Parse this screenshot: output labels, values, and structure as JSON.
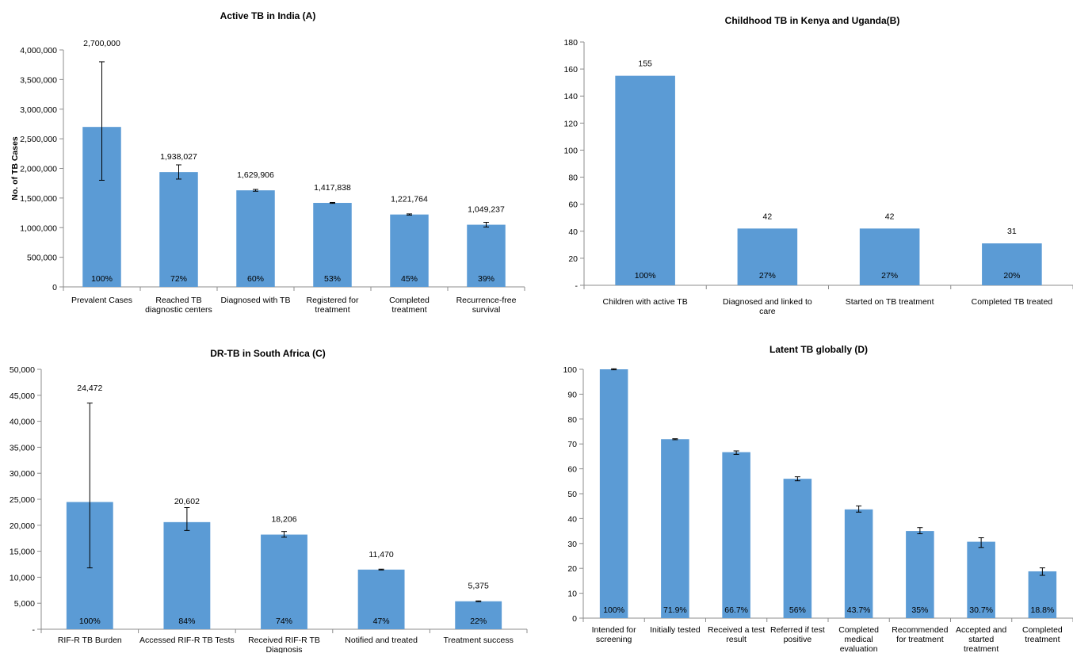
{
  "chart_data": [
    {
      "type": "bar",
      "title": "Active TB in India (A)",
      "ylabel": "No. of TB Cases",
      "xlabel": "",
      "ylim": [
        0,
        4000000
      ],
      "yticks": [
        "0",
        "500,000",
        "1,000,000",
        "1,500,000",
        "2,000,000",
        "2,500,000",
        "3,000,000",
        "3,500,000",
        "4,000,000"
      ],
      "categories": [
        [
          "Prevalent Cases"
        ],
        [
          "Reached TB",
          "diagnostic centers"
        ],
        [
          "Diagnosed with TB"
        ],
        [
          "Registered for",
          "treatment"
        ],
        [
          "Completed",
          "treatment"
        ],
        [
          "Recurrence-free",
          "survival"
        ]
      ],
      "values": [
        2700000,
        1938027,
        1629906,
        1417838,
        1221764,
        1049237
      ],
      "value_labels": [
        "2,700,000",
        "1,938,027",
        "1,629,906",
        "1,417,838",
        "1,221,764",
        "1,049,237"
      ],
      "percent_labels": [
        "100%",
        "72%",
        "60%",
        "53%",
        "45%",
        "39%"
      ],
      "error_low": [
        1800000,
        1820000,
        1615000,
        1410000,
        1212000,
        1010000
      ],
      "error_high": [
        3800000,
        2060000,
        1645000,
        1425000,
        1232000,
        1090000
      ]
    },
    {
      "type": "bar",
      "title": "Childhood TB in Kenya and Uganda(B)",
      "ylabel": "",
      "xlabel": "",
      "ylim": [
        0,
        180
      ],
      "yticks": [
        "-",
        "20",
        "40",
        "60",
        "80",
        "100",
        "120",
        "140",
        "160",
        "180"
      ],
      "categories": [
        [
          "Children with active TB"
        ],
        [
          "Diagnosed and linked to",
          "care"
        ],
        [
          "Started on TB treatment"
        ],
        [
          "Completed TB treated"
        ]
      ],
      "values": [
        155,
        42,
        42,
        31
      ],
      "value_labels": [
        "155",
        "42",
        "42",
        "31"
      ],
      "percent_labels": [
        "100%",
        "27%",
        "27%",
        "20%"
      ]
    },
    {
      "type": "bar",
      "title": "DR-TB in South Africa (C)",
      "ylabel": "",
      "xlabel": "",
      "ylim": [
        0,
        50000
      ],
      "yticks": [
        "-",
        "5,000",
        "10,000",
        "15,000",
        "20,000",
        "25,000",
        "30,000",
        "35,000",
        "40,000",
        "45,000",
        "50,000"
      ],
      "categories": [
        [
          "RIF-R TB Burden"
        ],
        [
          "Accessed RIF-R TB Tests"
        ],
        [
          "Received RIF-R TB",
          "Diagnosis"
        ],
        [
          "Notified and treated"
        ],
        [
          "Treatment success"
        ]
      ],
      "values": [
        24472,
        20602,
        18206,
        11470,
        5375
      ],
      "value_labels": [
        "24,472",
        "20,602",
        "18,206",
        "11,470",
        "5,375"
      ],
      "percent_labels": [
        "100%",
        "84%",
        "74%",
        "47%",
        "22%"
      ],
      "error_low": [
        11800,
        19000,
        17700,
        11400,
        5300
      ],
      "error_high": [
        43500,
        23400,
        18800,
        11550,
        5450
      ]
    },
    {
      "type": "bar",
      "title": "Latent TB globally (D)",
      "ylabel": "",
      "xlabel": "",
      "ylim": [
        0,
        100
      ],
      "yticks": [
        "0",
        "10",
        "20",
        "30",
        "40",
        "50",
        "60",
        "70",
        "80",
        "90",
        "100"
      ],
      "categories": [
        [
          "Intended for",
          "screening"
        ],
        [
          "Initially tested"
        ],
        [
          "Received a test",
          "result"
        ],
        [
          "Referred if test",
          "positive"
        ],
        [
          "Completed",
          "medical",
          "evaluation"
        ],
        [
          "Recommended",
          "for treatment"
        ],
        [
          "Accepted and",
          "started",
          "treatment"
        ],
        [
          "Completed",
          "treatment"
        ]
      ],
      "values": [
        100,
        71.9,
        66.7,
        56,
        43.7,
        35,
        30.7,
        18.8
      ],
      "percent_labels": [
        "100%",
        "71.9%",
        "66.7%",
        "56%",
        "43.7%",
        "35%",
        "30.7%",
        "18.8%"
      ],
      "error_low": [
        99.8,
        71.7,
        65.8,
        55.2,
        42.6,
        33.9,
        28.4,
        17.2
      ],
      "error_high": [
        100.2,
        72.1,
        67.2,
        56.8,
        45.1,
        36.4,
        32.3,
        20.2
      ]
    }
  ]
}
